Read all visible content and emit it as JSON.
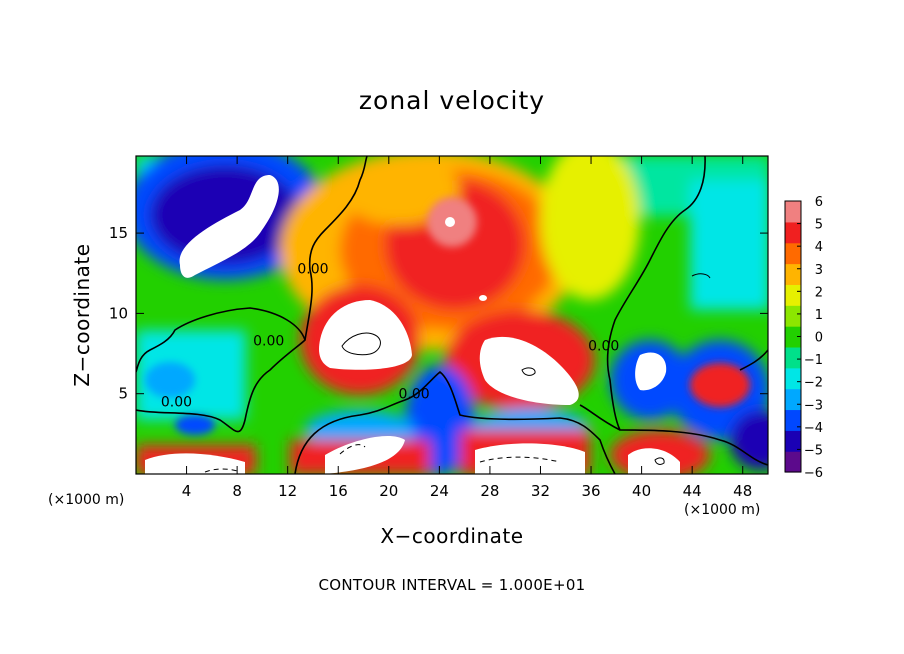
{
  "chart_data": {
    "type": "heatmap",
    "title": "zonal velocity",
    "xlabel": "X−coordinate",
    "ylabel": "Z−coordinate",
    "x_unit_left": "(×1000 m)",
    "x_unit_right": "(×1000 m)",
    "note": "CONTOUR INTERVAL = 1.000E+01",
    "xlim": [
      0,
      50
    ],
    "ylim": [
      0,
      19.8
    ],
    "xticks": [
      4,
      8,
      12,
      16,
      20,
      24,
      28,
      32,
      36,
      40,
      44,
      48
    ],
    "yticks": [
      5,
      10,
      15
    ],
    "colorbar": {
      "ticks": [
        6,
        5,
        4,
        3,
        2,
        1,
        0,
        "−1",
        "−2",
        "−3",
        "−4",
        "−5",
        "−6"
      ],
      "range": [
        -6,
        6
      ],
      "colors": [
        "#5c0a8c",
        "#1a00b4",
        "#0048ff",
        "#00a8ff",
        "#00e6e6",
        "#00e08a",
        "#22d000",
        "#8ce600",
        "#e6f000",
        "#ffb400",
        "#ff6a00",
        "#f02020",
        "#f08080"
      ]
    },
    "contour_labels": [
      {
        "text": "0.00",
        "x": 10.5,
        "y": 8.3
      },
      {
        "text": "0.00",
        "x": 3.2,
        "y": 4.5
      },
      {
        "text": "0.00",
        "x": 14.0,
        "y": 12.8
      },
      {
        "text": "0.00",
        "x": 22.0,
        "y": 5.0
      },
      {
        "text": "0.00",
        "x": 37.0,
        "y": 8.0
      }
    ],
    "features": [
      {
        "kind": "min",
        "x": 6.5,
        "y": 14.5,
        "value": -6
      },
      {
        "kind": "min",
        "x": 40.5,
        "y": 6.0,
        "value": -6
      },
      {
        "kind": "max",
        "x": 18.5,
        "y": 8.5,
        "value": 6
      },
      {
        "kind": "max",
        "x": 30.5,
        "y": 6.5,
        "value": 6
      },
      {
        "kind": "max",
        "x": 24.5,
        "y": 14.5,
        "value": 6
      },
      {
        "kind": "max",
        "x": 46.0,
        "y": 5.0,
        "value": 6
      },
      {
        "kind": "max",
        "x": 25.5,
        "y": 0.8,
        "value": 6
      },
      {
        "kind": "max",
        "x": 42.0,
        "y": 1.0,
        "value": 6
      }
    ]
  }
}
